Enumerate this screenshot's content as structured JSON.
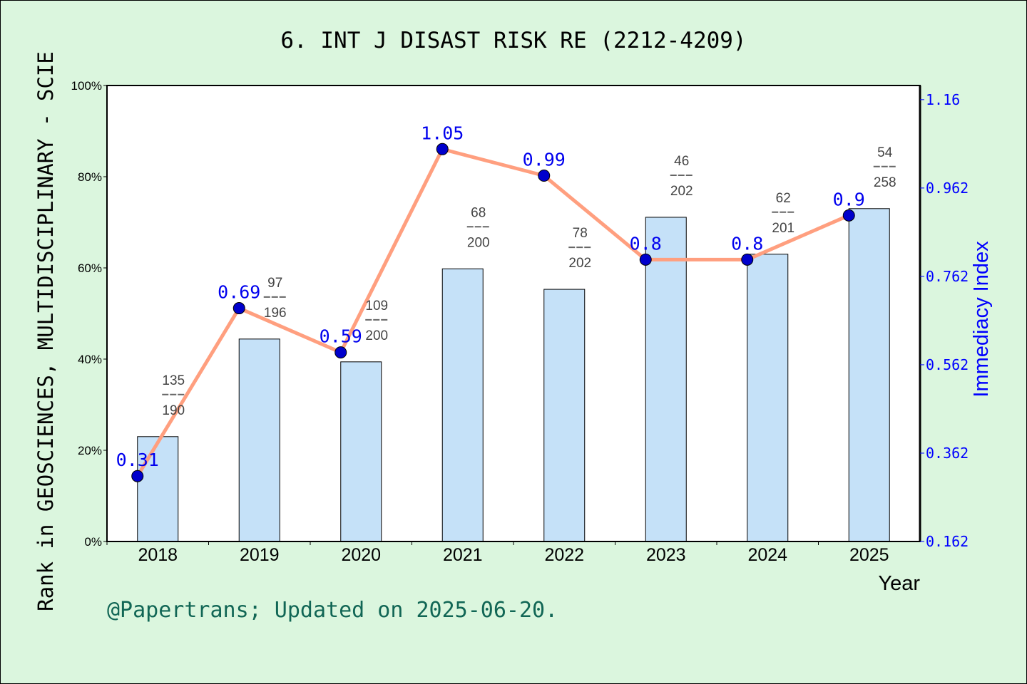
{
  "chart_data": {
    "type": "bar+line",
    "title": "6. INT J DISAST RISK RE (2212-4209)",
    "xlabel": "Year",
    "ylabel": "Rank in GEOSCIENCES, MULTIDISCIPLINARY - SCIE",
    "y2label": "Immediacy Index",
    "categories": [
      "2018",
      "2019",
      "2020",
      "2021",
      "2022",
      "2023",
      "2024",
      "2025"
    ],
    "ylim": [
      0,
      100
    ],
    "yticks": [
      "0%",
      "20%",
      "40%",
      "60%",
      "80%",
      "100%"
    ],
    "y2lim": [
      0.162,
      1.194
    ],
    "y2ticks": [
      "0.162",
      "0.362",
      "0.562",
      "0.762",
      "0.962",
      "1.16"
    ],
    "bars": {
      "values": [
        23.0,
        44.4,
        39.4,
        59.8,
        55.3,
        71.1,
        63.0,
        73.0
      ],
      "rank": [
        "135",
        "97",
        "109",
        "68",
        "78",
        "46",
        "62",
        "54"
      ],
      "total": [
        "190",
        "196",
        "200",
        "200",
        "202",
        "202",
        "201",
        "258"
      ],
      "color": "#c5e0f7"
    },
    "line": {
      "values": [
        0.31,
        0.69,
        0.59,
        1.05,
        0.99,
        0.8,
        0.8,
        0.9
      ],
      "labels": [
        "0.31",
        "0.69",
        "0.59",
        "1.05",
        "0.99",
        "0.8",
        "0.8",
        "0.9"
      ],
      "color": "#ff9f7f",
      "marker_color": "#0000cc"
    },
    "grid": false,
    "footer": "@Papertrans; Updated on 2025-06-20."
  }
}
